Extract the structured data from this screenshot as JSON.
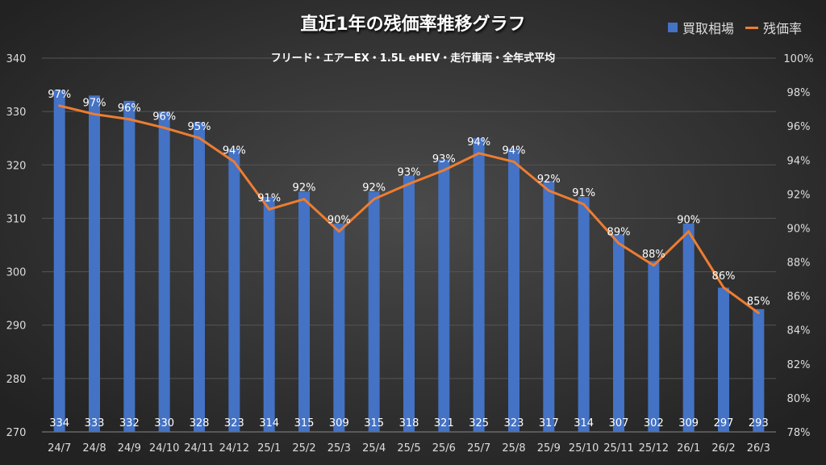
{
  "chart_data": {
    "type": "bar+line",
    "title": "直近1年の残価率推移グラフ",
    "subtitle": "フリード・エアーEX・1.5L eHEV・走行車両・全年式平均",
    "categories": [
      "24/7",
      "24/8",
      "24/9",
      "24/10",
      "24/11",
      "24/12",
      "25/1",
      "25/2",
      "25/3",
      "25/4",
      "25/5",
      "25/6",
      "25/7",
      "25/8",
      "25/9",
      "25/10",
      "25/11",
      "25/12",
      "26/1",
      "26/2",
      "26/3"
    ],
    "series": [
      {
        "name": "買取相場",
        "type": "bar",
        "axis": "left",
        "color": "#4472c4",
        "values": [
          334,
          333,
          332,
          330,
          328,
          323,
          314,
          315,
          309,
          315,
          318,
          321,
          325,
          323,
          317,
          314,
          307,
          302,
          309,
          297,
          293
        ]
      },
      {
        "name": "残価率",
        "type": "line",
        "axis": "right",
        "color": "#ed7d31",
        "values": [
          97.2,
          96.7,
          96.4,
          95.9,
          95.3,
          93.9,
          91.1,
          91.7,
          89.8,
          91.7,
          92.6,
          93.4,
          94.4,
          93.9,
          92.2,
          91.4,
          89.1,
          87.8,
          89.8,
          86.5,
          85.0
        ],
        "labels": [
          "97%",
          "97%",
          "96%",
          "96%",
          "95%",
          "94%",
          "91%",
          "92%",
          "90%",
          "92%",
          "93%",
          "93%",
          "94%",
          "94%",
          "92%",
          "91%",
          "89%",
          "88%",
          "90%",
          "86%",
          "85%"
        ]
      }
    ],
    "ylim_left": [
      270,
      340
    ],
    "yticks_left": [
      "270",
      "280",
      "290",
      "300",
      "310",
      "320",
      "330",
      "340"
    ],
    "ylim_right": [
      78,
      100
    ],
    "yticks_right": [
      "78%",
      "80%",
      "82%",
      "84%",
      "86%",
      "88%",
      "90%",
      "92%",
      "94%",
      "96%",
      "98%",
      "100%"
    ],
    "grid": true,
    "legend": "top-right"
  }
}
